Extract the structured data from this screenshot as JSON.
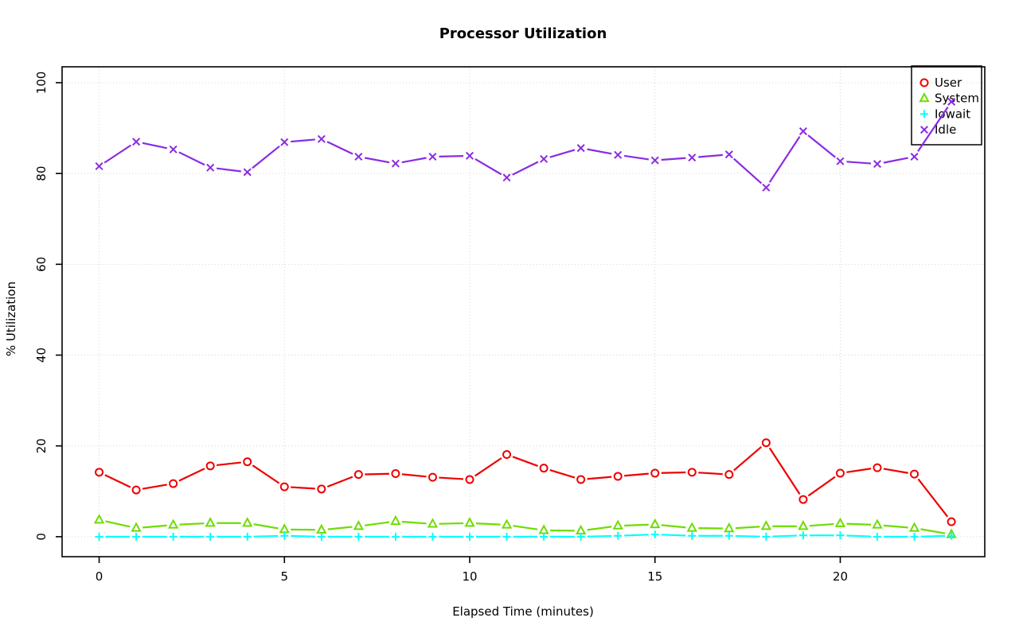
{
  "chart_data": {
    "type": "line",
    "title": "Processor Utilization",
    "xlabel": "Elapsed Time (minutes)",
    "ylabel": "% Utilization",
    "x": [
      0,
      1,
      2,
      3,
      4,
      5,
      6,
      7,
      8,
      9,
      10,
      11,
      12,
      13,
      14,
      15,
      16,
      17,
      18,
      19,
      20,
      21,
      22,
      23
    ],
    "x_ticks": [
      0,
      5,
      10,
      15,
      20
    ],
    "y_ticks": [
      0,
      20,
      40,
      60,
      80,
      100
    ],
    "xlim": [
      -1.0,
      23.9
    ],
    "ylim": [
      -4.4,
      103.5
    ],
    "grid": true,
    "grid_style": "dotted",
    "grid_color": "#d4d4d4",
    "legend_position": "top-right",
    "series": [
      {
        "name": "User",
        "color": "#ee0000",
        "marker": "circle",
        "values": [
          14.2,
          10.3,
          11.7,
          15.6,
          16.5,
          11.0,
          10.5,
          13.7,
          13.9,
          13.1,
          12.6,
          18.1,
          15.1,
          12.6,
          13.3,
          14.0,
          14.2,
          13.7,
          20.7,
          8.2,
          14.0,
          15.2,
          13.8,
          3.3
        ]
      },
      {
        "name": "System",
        "color": "#6edc00",
        "marker": "triangle",
        "values": [
          3.7,
          1.9,
          2.6,
          3.0,
          3.0,
          1.6,
          1.5,
          2.3,
          3.4,
          2.8,
          3.0,
          2.6,
          1.4,
          1.3,
          2.4,
          2.7,
          1.9,
          1.8,
          2.3,
          2.3,
          2.9,
          2.6,
          1.9,
          0.5
        ]
      },
      {
        "name": "Iowait",
        "color": "#00ffff",
        "marker": "plus",
        "values": [
          0,
          0,
          0,
          0,
          0,
          0.2,
          0,
          0,
          0,
          0,
          0,
          0,
          0,
          0,
          0.2,
          0.5,
          0.2,
          0.2,
          0,
          0.3,
          0.3,
          0,
          0,
          0.2
        ]
      },
      {
        "name": "Idle",
        "color": "#8a2be2",
        "marker": "x",
        "values": [
          81.6,
          87.0,
          85.3,
          81.3,
          80.3,
          86.9,
          87.6,
          83.7,
          82.2,
          83.7,
          83.9,
          79.1,
          83.2,
          85.6,
          84.1,
          82.9,
          83.5,
          84.2,
          76.9,
          89.3,
          82.7,
          82.1,
          83.7,
          95.8
        ]
      }
    ]
  }
}
